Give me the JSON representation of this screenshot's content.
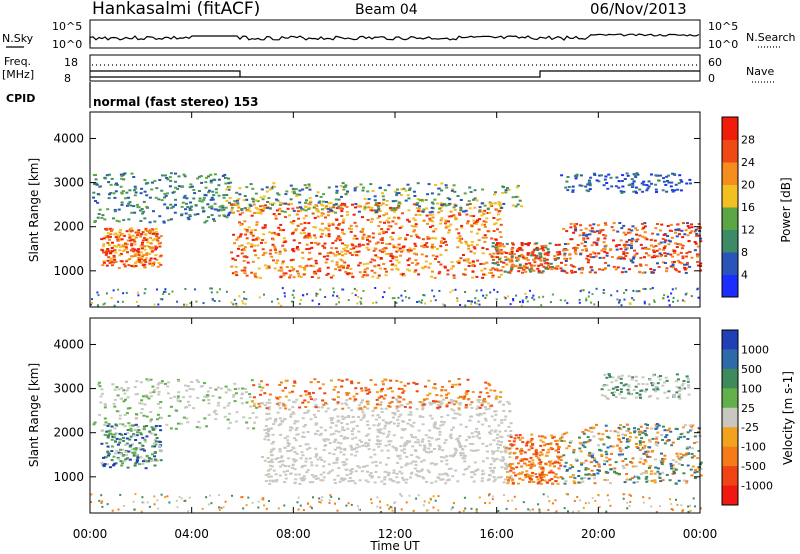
{
  "header": {
    "station": "Hankasalmi (fitACF)",
    "beam": "Beam 04",
    "date": "06/Nov/2013"
  },
  "strip": {
    "nsky_label": "N.Sky",
    "nsearch_label": "N.Search",
    "noise_ticks": [
      "10^5",
      "10^0"
    ],
    "freq_label_1": "Freq.",
    "freq_label_2": "[MHz]",
    "freq_ticks": [
      "18",
      "8"
    ],
    "nave_label": "Nave",
    "nave_ticks": [
      "60",
      "0"
    ],
    "cpid_label": "CPID",
    "cpid_text": "normal (fast stereo) 153"
  },
  "chart_data": [
    {
      "type": "heatmap",
      "title": "Power",
      "ylabel": "Slant Range [km]",
      "colorbar_label": "Power [dB]",
      "ylim": [
        180,
        4600
      ],
      "yticks": [
        1000,
        2000,
        3000,
        4000
      ],
      "colorbar": {
        "tick_labels": [
          "4",
          "8",
          "12",
          "16",
          "20",
          "24",
          "28"
        ],
        "colors": [
          "#1b2dff",
          "#2a55b8",
          "#3c8a66",
          "#5aa545",
          "#f2c020",
          "#f58c1e",
          "#f04a14",
          "#f01c0c"
        ]
      }
    },
    {
      "type": "heatmap",
      "title": "Velocity",
      "ylabel": "Slant Range [km]",
      "colorbar_label": "Velocity [m s-1]",
      "ylim": [
        180,
        4600
      ],
      "yticks": [
        1000,
        2000,
        3000,
        4000
      ],
      "colorbar": {
        "tick_labels": [
          "1000",
          "500",
          "100",
          "25",
          "-25",
          "-100",
          "-500",
          "-1000"
        ],
        "colors": [
          "#2040b8",
          "#2f6aa8",
          "#3e8a5c",
          "#62b04a",
          "#c8c8c0",
          "#f2a21e",
          "#f57a18",
          "#f04414",
          "#f01810"
        ]
      }
    }
  ],
  "x_axis": {
    "label": "Time UT",
    "tick_labels": [
      "00:00",
      "04:00",
      "08:00",
      "12:00",
      "16:00",
      "20:00",
      "00:00"
    ]
  }
}
